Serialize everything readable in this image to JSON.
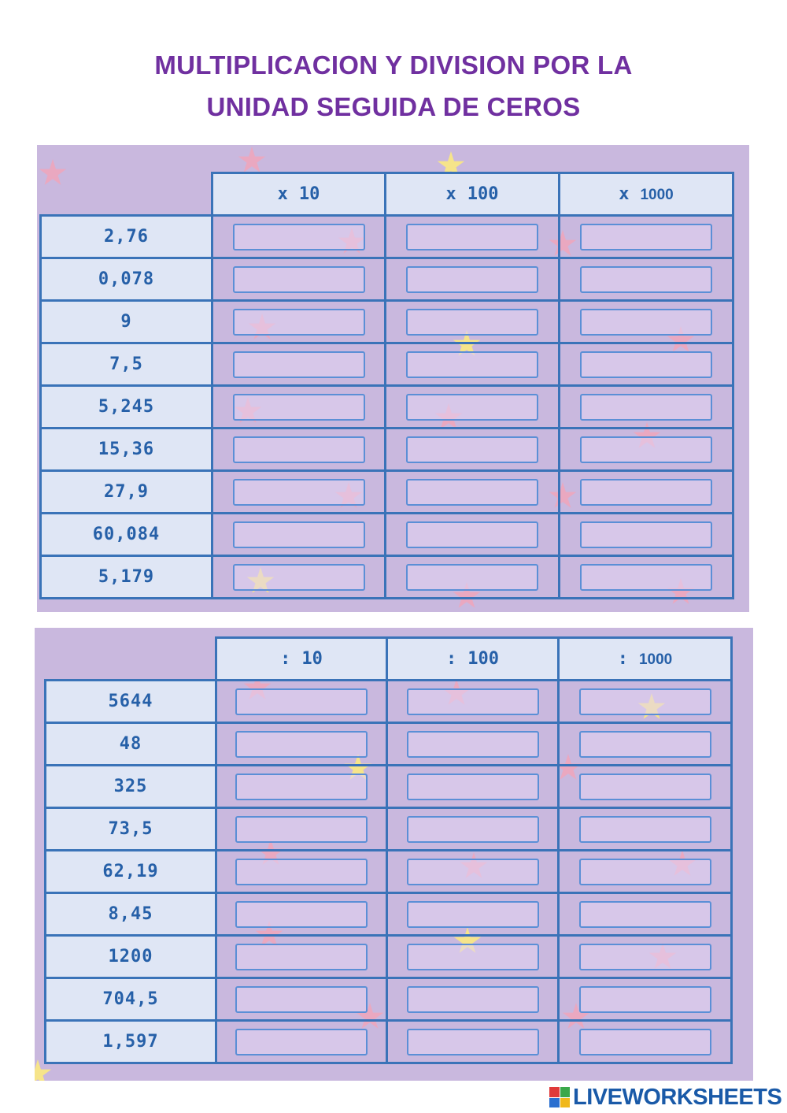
{
  "title": {
    "line1": "MULTIPLICACION Y DIVISION POR LA",
    "line2": "UNIDAD SEGUIDA DE CEROS"
  },
  "multiplication": {
    "headers": [
      {
        "op": "x",
        "num": "10"
      },
      {
        "op": "x",
        "num": "100"
      },
      {
        "op": "x",
        "num": "1000"
      }
    ],
    "rows": [
      "2,76",
      "0,078",
      "9",
      "7,5",
      "5,245",
      "15,36",
      "27,9",
      "60,084",
      "5,179"
    ]
  },
  "division": {
    "headers": [
      {
        "op": ":",
        "num": "10"
      },
      {
        "op": ":",
        "num": "100"
      },
      {
        "op": ":",
        "num": "1000"
      }
    ],
    "rows": [
      "5644",
      "48",
      "325",
      "73,5",
      "62,19",
      "8,45",
      "1200",
      "704,5",
      "1,597"
    ]
  },
  "brand": {
    "text": "LIVEWORKSHEETS"
  },
  "colors": {
    "title": "#7030a0",
    "panel": "#c9b8de",
    "border": "#3a73b8",
    "cell_text": "#2660a8",
    "brand": "#1a5aa8"
  }
}
